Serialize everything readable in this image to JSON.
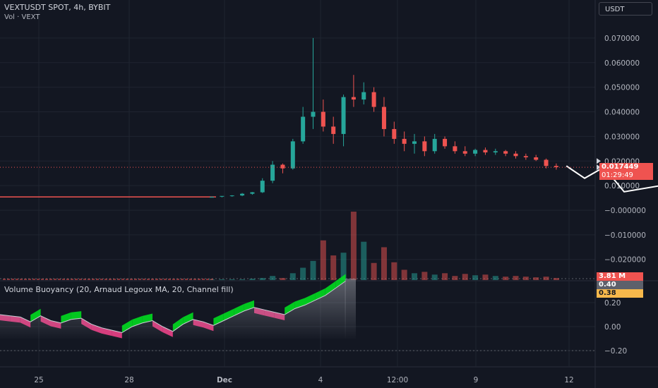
{
  "header": {
    "symbol_line": "VEXTUSDT SPOT, 4h, BYBIT",
    "volume_line": "Vol · VEXT"
  },
  "currency_button": "USDT",
  "price_axis": {
    "ticks": [
      "0.070000",
      "0.060000",
      "0.050000",
      "0.040000",
      "0.030000",
      "0.020000",
      "0.010000",
      "−0.000000",
      "−0.010000",
      "−0.020000"
    ]
  },
  "last_price": {
    "value": "0.017449",
    "countdown": "01:29:49"
  },
  "volume_badge": "3.81 M",
  "indicator": {
    "label": "Volume Buoyancy (20, Arnaud Legoux MA, 20, Channel fill)",
    "ticks": [
      "0.20",
      "0.00",
      "−0.20"
    ],
    "value1": "0.40",
    "value2": "0.38"
  },
  "time_axis": {
    "ticks": [
      "25",
      "28",
      "Dec",
      "4",
      "12:00",
      "9",
      "12"
    ]
  },
  "colors": {
    "background": "#131722",
    "up": "#26a69a",
    "down": "#ef5350",
    "projection": "#ffffff",
    "osc_up": "#00e61f",
    "osc_down": "#ff3d8b"
  },
  "chart_data": {
    "type": "candlestick",
    "price_ylim": [
      -0.02,
      0.07
    ],
    "candles_note": "",
    "candles": [
      {
        "o": 0.0054,
        "h": 0.0056,
        "l": 0.0053,
        "c": 0.0054
      },
      {
        "o": 0.0055,
        "h": 0.0057,
        "l": 0.0052,
        "c": 0.0058
      },
      {
        "o": 0.0058,
        "h": 0.0061,
        "l": 0.0055,
        "c": 0.006
      },
      {
        "o": 0.006,
        "h": 0.007,
        "l": 0.0057,
        "c": 0.0067
      },
      {
        "o": 0.0067,
        "h": 0.0074,
        "l": 0.0063,
        "c": 0.0073
      },
      {
        "o": 0.0073,
        "h": 0.013,
        "l": 0.007,
        "c": 0.012
      },
      {
        "o": 0.012,
        "h": 0.02,
        "l": 0.011,
        "c": 0.0185
      },
      {
        "o": 0.0185,
        "h": 0.019,
        "l": 0.015,
        "c": 0.017
      },
      {
        "o": 0.017,
        "h": 0.029,
        "l": 0.0165,
        "c": 0.028
      },
      {
        "o": 0.028,
        "h": 0.042,
        "l": 0.027,
        "c": 0.038
      },
      {
        "o": 0.038,
        "h": 0.07,
        "l": 0.033,
        "c": 0.04
      },
      {
        "o": 0.04,
        "h": 0.045,
        "l": 0.032,
        "c": 0.034
      },
      {
        "o": 0.034,
        "h": 0.038,
        "l": 0.027,
        "c": 0.031
      },
      {
        "o": 0.031,
        "h": 0.047,
        "l": 0.026,
        "c": 0.046
      },
      {
        "o": 0.046,
        "h": 0.055,
        "l": 0.042,
        "c": 0.045
      },
      {
        "o": 0.045,
        "h": 0.052,
        "l": 0.043,
        "c": 0.048
      },
      {
        "o": 0.048,
        "h": 0.05,
        "l": 0.04,
        "c": 0.042
      },
      {
        "o": 0.042,
        "h": 0.046,
        "l": 0.03,
        "c": 0.033
      },
      {
        "o": 0.033,
        "h": 0.036,
        "l": 0.027,
        "c": 0.029
      },
      {
        "o": 0.029,
        "h": 0.032,
        "l": 0.024,
        "c": 0.027
      },
      {
        "o": 0.027,
        "h": 0.031,
        "l": 0.023,
        "c": 0.028
      },
      {
        "o": 0.028,
        "h": 0.03,
        "l": 0.022,
        "c": 0.024
      },
      {
        "o": 0.024,
        "h": 0.031,
        "l": 0.023,
        "c": 0.029
      },
      {
        "o": 0.029,
        "h": 0.03,
        "l": 0.025,
        "c": 0.026
      },
      {
        "o": 0.026,
        "h": 0.028,
        "l": 0.023,
        "c": 0.024
      },
      {
        "o": 0.024,
        "h": 0.026,
        "l": 0.022,
        "c": 0.023
      },
      {
        "o": 0.023,
        "h": 0.025,
        "l": 0.022,
        "c": 0.0245
      },
      {
        "o": 0.0245,
        "h": 0.0255,
        "l": 0.0225,
        "c": 0.0235
      },
      {
        "o": 0.0235,
        "h": 0.025,
        "l": 0.0225,
        "c": 0.024
      },
      {
        "o": 0.024,
        "h": 0.0245,
        "l": 0.022,
        "c": 0.023
      },
      {
        "o": 0.023,
        "h": 0.024,
        "l": 0.021,
        "c": 0.022
      },
      {
        "o": 0.022,
        "h": 0.023,
        "l": 0.0205,
        "c": 0.0215
      },
      {
        "o": 0.0215,
        "h": 0.0225,
        "l": 0.02,
        "c": 0.0205
      },
      {
        "o": 0.0205,
        "h": 0.021,
        "l": 0.017,
        "c": 0.018
      },
      {
        "o": 0.018,
        "h": 0.019,
        "l": 0.0165,
        "c": 0.0175
      }
    ],
    "volume_relative": [
      0.01,
      0.01,
      0.01,
      0.01,
      0.02,
      0.03,
      0.06,
      0.03,
      0.1,
      0.18,
      0.28,
      0.58,
      0.36,
      0.4,
      1.0,
      0.56,
      0.25,
      0.48,
      0.26,
      0.15,
      0.1,
      0.12,
      0.08,
      0.1,
      0.06,
      0.09,
      0.07,
      0.08,
      0.06,
      0.05,
      0.06,
      0.05,
      0.04,
      0.05,
      0.03
    ],
    "projection": [
      {
        "t": 35.0,
        "p": 0.018
      },
      {
        "t": 36.8,
        "p": 0.013
      },
      {
        "t": 38.7,
        "p": 0.0175
      },
      {
        "t": 40.7,
        "p": 0.0075
      },
      {
        "t": 44.3,
        "p": 0.01
      },
      {
        "t": 45.8,
        "p": 0.006
      },
      {
        "t": 47.3,
        "p": 0.0075
      },
      {
        "t": 48.3,
        "p": 0.0065
      },
      {
        "t": 49.7,
        "p": 0.0075
      },
      {
        "t": 51.3,
        "p": 0.007
      },
      {
        "t": 52.6,
        "p": 0.006
      },
      {
        "t": 56.0,
        "p": 0.035
      },
      {
        "t": 58.3,
        "p": 0.033
      },
      {
        "t": 60.3,
        "p": 0.049
      },
      {
        "t": 62.0,
        "p": 0.042
      },
      {
        "t": 65.6,
        "p": 0.084
      }
    ],
    "oscillator": {
      "ylim": [
        -0.25,
        0.45
      ],
      "line": [
        0.1,
        0.09,
        0.08,
        0.04,
        0.09,
        0.05,
        0.03,
        0.06,
        0.07,
        0.02,
        -0.01,
        -0.03,
        -0.05,
        0.0,
        0.03,
        0.05,
        0.0,
        -0.04,
        0.02,
        0.06,
        0.04,
        0.01,
        0.05,
        0.09,
        0.13,
        0.16,
        0.14,
        0.12,
        0.1,
        0.15,
        0.18,
        0.22,
        0.26,
        0.32,
        0.38
      ],
      "values_shown": [
        0.4,
        0.38
      ]
    }
  }
}
